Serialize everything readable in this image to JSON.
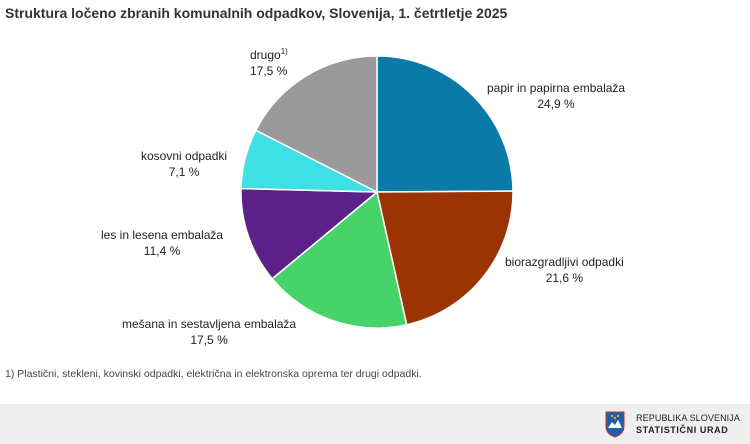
{
  "chart_data": {
    "type": "pie",
    "title": "Struktura ločeno zbranih komunalnih odpadkov, Slovenija, 1. četrtletje 2025",
    "start_angle_deg": 0,
    "direction": "clockwise",
    "slices": [
      {
        "label": "papir in papirna embalaža",
        "value": 24.9,
        "value_label": "24,9 %",
        "footnote_mark": "",
        "color": "#0a7aa8"
      },
      {
        "label": "biorazgradljivi odpadki",
        "value": 21.6,
        "value_label": "21,6 %",
        "footnote_mark": "",
        "color": "#9b3303"
      },
      {
        "label": "mešana in sestavljena embalaža",
        "value": 17.5,
        "value_label": "17,5 %",
        "footnote_mark": "",
        "color": "#46d46a"
      },
      {
        "label": "les in lesena embalaža",
        "value": 11.4,
        "value_label": "11,4 %",
        "footnote_mark": "",
        "color": "#5b2188"
      },
      {
        "label": "kosovni odpadki",
        "value": 7.1,
        "value_label": "7,1 %",
        "footnote_mark": "",
        "color": "#3ee0e5"
      },
      {
        "label": "drugo",
        "value": 17.5,
        "value_label": "17,5 %",
        "footnote_mark": "1)",
        "color": "#9a9a9a"
      }
    ]
  },
  "footnote": "1) Plastični, stekleni, kovinski odpadki, električna in elektronska oprema ter drugi odpadki.",
  "logo": {
    "line1": "REPUBLIKA SLOVENIJA",
    "line2": "STATISTIČNI URAD",
    "colors": {
      "shield": "#1f5fa8",
      "mountain": "#ffffff",
      "star": "#f2c300"
    }
  }
}
